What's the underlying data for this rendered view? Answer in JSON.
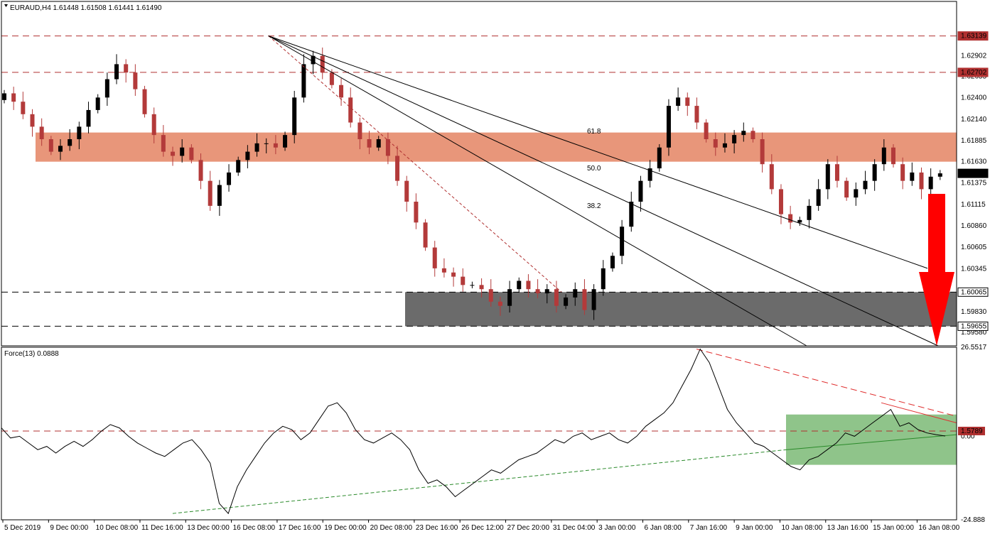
{
  "header": {
    "symbol_line": "EURAUD,H4  1.61448 1.61508 1.61441 1.61490",
    "force_label": "Force(13) 0.0888"
  },
  "colors": {
    "bull": "#000000",
    "bear": "#b33a3a",
    "resistance_zone": "#e8967a",
    "support_zone": "#6b6b6b",
    "level_line": "#b03030",
    "arrow": "#ff0000",
    "force_zone": "#8fc48a",
    "force_trend_up": "#2a8a2a",
    "force_trend_down": "#e03030"
  },
  "chart_data": [
    {
      "type": "candlestick",
      "title": "EURAUD,H4",
      "ohlc_last": {
        "open": 1.61448,
        "high": 1.61508,
        "low": 1.61441,
        "close": 1.6149
      },
      "ylim": [
        1.5942,
        1.634
      ],
      "y_ticks": [
        "1.63139",
        "1.62902",
        "1.62702",
        "1.62655",
        "1.62400",
        "1.62140",
        "1.61885",
        "1.61630",
        "1.61490",
        "1.61375",
        "1.61115",
        "1.60860",
        "1.60605",
        "1.60345",
        "1.60065",
        "1.59830",
        "1.59655",
        "1.59580"
      ],
      "x_ticks": [
        "5 Dec 2019",
        "9 Dec 00:00",
        "10 Dec 08:00",
        "11 Dec 16:00",
        "13 Dec 00:00",
        "16 Dec 08:00",
        "17 Dec 16:00",
        "19 Dec 00:00",
        "20 Dec 08:00",
        "23 Dec 16:00",
        "26 Dec 12:00",
        "27 Dec 20:00",
        "31 Dec 04:00",
        "3 Jan 00:00",
        "6 Jan 08:00",
        "7 Jan 16:00",
        "9 Jan 00:00",
        "10 Jan 08:00",
        "13 Jan 16:00",
        "15 Jan 00:00",
        "16 Jan 08:00"
      ],
      "horizontal_levels": [
        {
          "label": "1.63139",
          "value": 1.63139
        },
        {
          "label": "1.62702",
          "value": 1.62702
        },
        {
          "label": "1.60065",
          "value": 1.60065
        },
        {
          "label": "1.59655",
          "value": 1.59655
        }
      ],
      "current_price": {
        "label": "1.61490",
        "value": 1.6149
      },
      "resistance_zone": [
        1.6163,
        1.6198
      ],
      "support_zone": [
        1.59655,
        1.60065
      ],
      "fibonacci_fan": [
        "61.8",
        "50.0",
        "38.2"
      ],
      "price_path": [
        1.6245,
        1.6235,
        1.622,
        1.6205,
        1.619,
        1.6175,
        1.6182,
        1.619,
        1.6205,
        1.6225,
        1.624,
        1.6262,
        1.628,
        1.627,
        1.625,
        1.622,
        1.6195,
        1.6175,
        1.617,
        1.618,
        1.6165,
        1.614,
        1.611,
        1.6135,
        1.615,
        1.6165,
        1.6175,
        1.6185,
        1.6185,
        1.618,
        1.6195,
        1.624,
        1.628,
        1.629,
        1.627,
        1.6255,
        1.624,
        1.621,
        1.619,
        1.618,
        1.619,
        1.617,
        1.614,
        1.6115,
        1.609,
        1.606,
        1.6035,
        1.603,
        1.6025,
        1.6015,
        1.6015,
        1.601,
        1.5995,
        1.599,
        1.601,
        1.602,
        1.601,
        1.6005,
        1.601,
        1.599,
        1.6,
        1.601,
        1.5985,
        1.601,
        1.6035,
        1.605,
        1.6085,
        1.6115,
        1.614,
        1.6155,
        1.618,
        1.623,
        1.624,
        1.623,
        1.621,
        1.619,
        1.618,
        1.6185,
        1.6195,
        1.62,
        1.619,
        1.616,
        1.613,
        1.61,
        1.609,
        1.6093,
        1.611,
        1.613,
        1.616,
        1.614,
        1.612,
        1.613,
        1.614,
        1.616,
        1.618,
        1.616,
        1.614,
        1.615,
        1.613,
        1.6145,
        1.6149
      ]
    },
    {
      "type": "line",
      "title": "Force(13) 0.0888",
      "ylim": [
        -24.888,
        26.5517
      ],
      "y_ticks": [
        "26.5517",
        "1.5789",
        "0.00",
        "-24.888"
      ],
      "level": {
        "label": "1.5789",
        "value": 1.5789
      },
      "series": [
        {
          "values": [
            2.5,
            -0.5,
            0,
            -2,
            -4,
            -3,
            -5,
            -3,
            -1.5,
            -3,
            -1,
            1.5,
            3.5,
            2.5,
            0,
            -2,
            -3.5,
            -5,
            -6,
            -4,
            -2,
            -1,
            -4,
            -8,
            -20,
            -23,
            -15,
            -10,
            -6,
            -2,
            1,
            3,
            2,
            -1,
            1,
            5,
            9,
            10,
            7,
            2,
            -1,
            -2,
            -0.5,
            1,
            -1,
            -4,
            -10,
            -14,
            -13,
            -15,
            -18,
            -16,
            -14,
            -12,
            -10,
            -11,
            -9,
            -7,
            -6,
            -5,
            -3,
            -1,
            -2,
            0,
            1,
            -1,
            0,
            1,
            -1,
            -2,
            0,
            3,
            5,
            7,
            10,
            15,
            20,
            26,
            22,
            15,
            8,
            4,
            1,
            -2,
            -3,
            -5,
            -7,
            -9,
            -10,
            -7,
            -6,
            -4,
            -2,
            1,
            0,
            2,
            4,
            6,
            8,
            3,
            4,
            2,
            1,
            0.5,
            0.1
          ]
        }
      ],
      "zone": [
        -8.5,
        6.5
      ]
    }
  ]
}
